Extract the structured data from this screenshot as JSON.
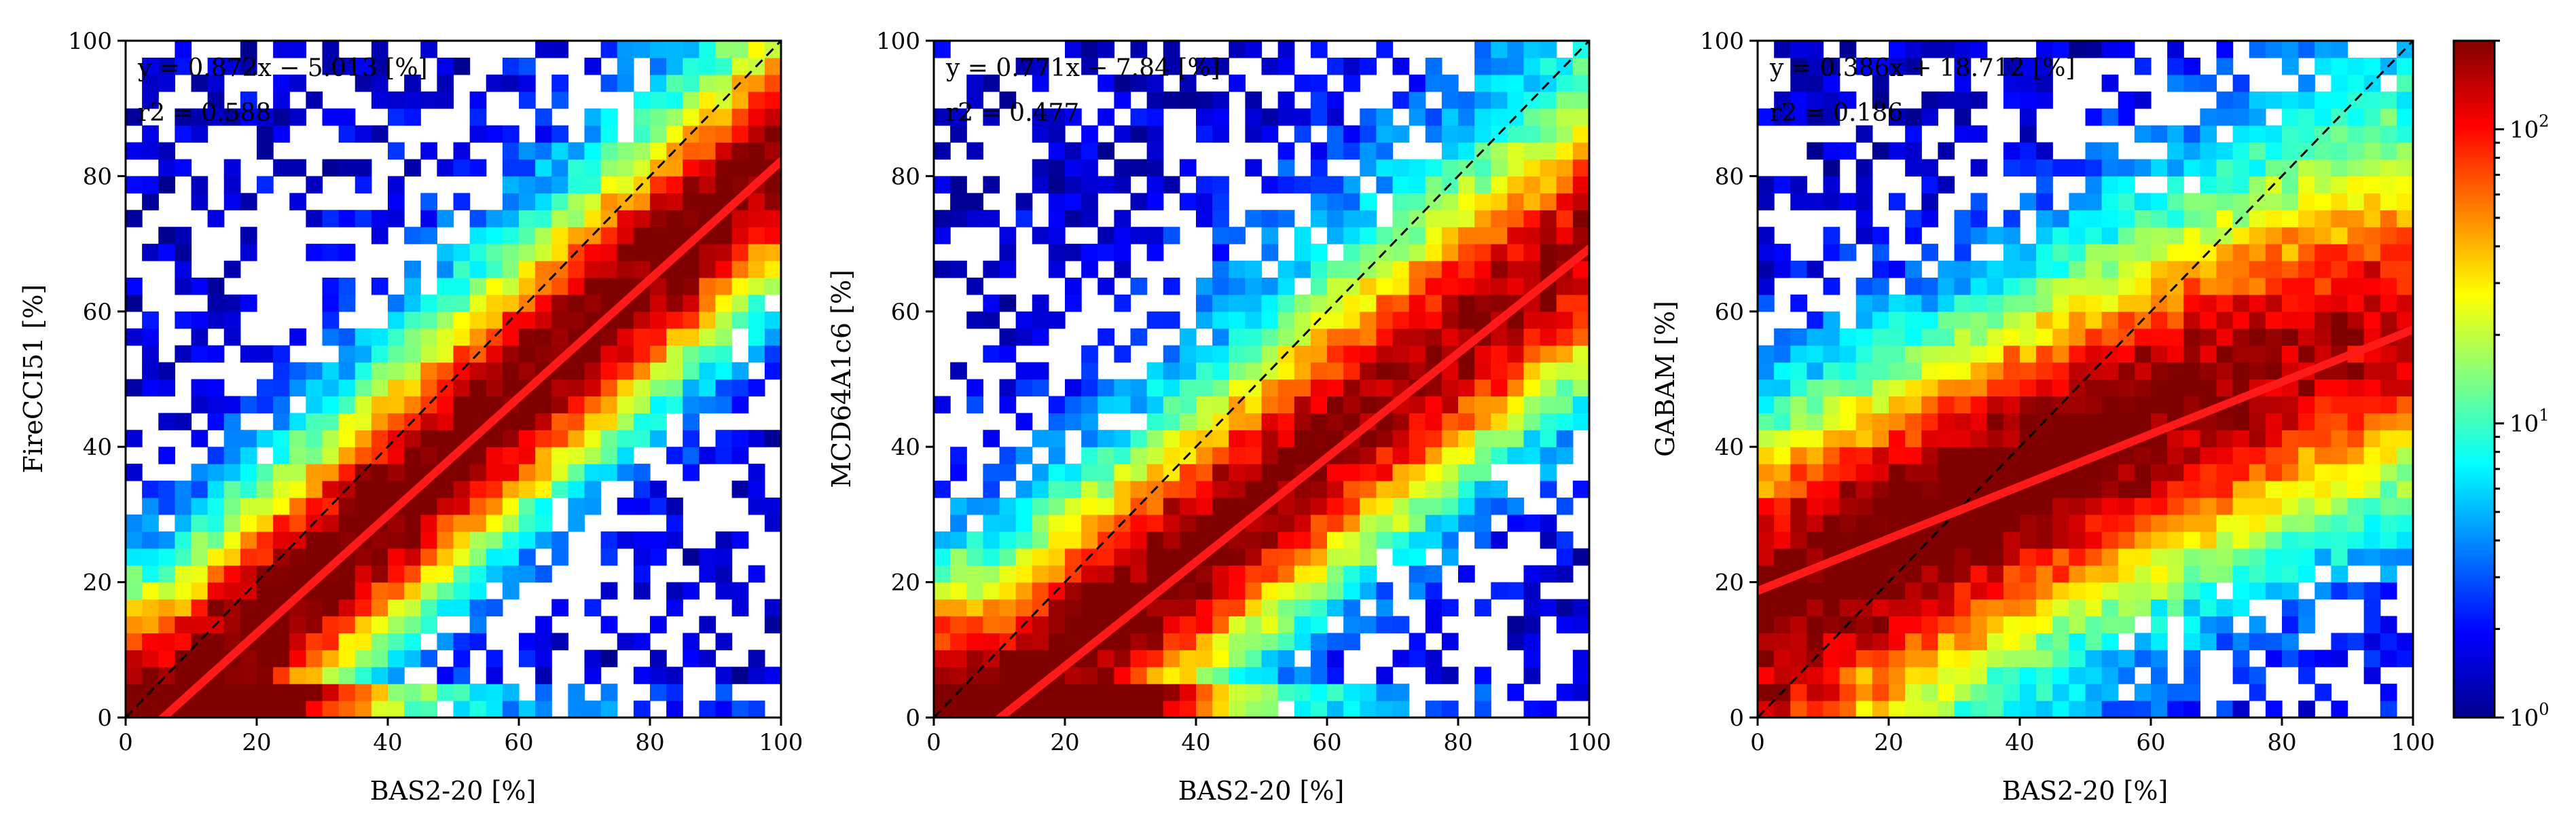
{
  "chart_data": [
    {
      "type": "heatmap",
      "xlabel": "BAS2-20 [%]",
      "ylabel": "FireCCI51 [%]",
      "xlim": [
        0,
        100
      ],
      "ylim": [
        0,
        100
      ],
      "xticks": [
        "0",
        "20",
        "40",
        "60",
        "80",
        "100"
      ],
      "yticks": [
        "0",
        "20",
        "40",
        "60",
        "80",
        "100"
      ],
      "equation": "y = 0.872x − 5.013 [%]",
      "r2_label": "r2 = 0.588",
      "fit": {
        "slope": 0.872,
        "intercept": -5.013
      },
      "one_to_one_line": true,
      "density": {
        "spread": 20,
        "low_band_strength": 1.0
      }
    },
    {
      "type": "heatmap",
      "xlabel": "BAS2-20 [%]",
      "ylabel": "MCD64A1c6 [%]",
      "xlim": [
        0,
        100
      ],
      "ylim": [
        0,
        100
      ],
      "xticks": [
        "0",
        "20",
        "40",
        "60",
        "80",
        "100"
      ],
      "yticks": [
        "0",
        "20",
        "40",
        "60",
        "80",
        "100"
      ],
      "equation": "y = 0.771x − 7.84 [%]",
      "r2_label": "r2 = 0.477",
      "fit": {
        "slope": 0.771,
        "intercept": -7.84
      },
      "one_to_one_line": true,
      "density": {
        "spread": 22,
        "low_band_strength": 1.0
      }
    },
    {
      "type": "heatmap",
      "xlabel": "BAS2-20 [%]",
      "ylabel": "GABAM [%]",
      "xlim": [
        0,
        100
      ],
      "ylim": [
        0,
        100
      ],
      "xticks": [
        "0",
        "20",
        "40",
        "60",
        "80",
        "100"
      ],
      "yticks": [
        "0",
        "20",
        "40",
        "60",
        "80",
        "100"
      ],
      "equation": "y = 0.386x + 18.712 [%]",
      "r2_label": "r2 = 0.186",
      "fit": {
        "slope": 0.386,
        "intercept": 18.712
      },
      "one_to_one_line": true,
      "density": {
        "spread": 28,
        "low_band_strength": 0.15
      }
    }
  ],
  "colorbar": {
    "scale": "log",
    "range": [
      1,
      200
    ],
    "tick_base": "10",
    "tick_exponents": [
      "0",
      "1",
      "2"
    ],
    "colormap": "jet",
    "colors": [
      "#00008f",
      "#0000ff",
      "#0080ff",
      "#00ffff",
      "#80ff80",
      "#ffff00",
      "#ff8000",
      "#ff0000",
      "#800000"
    ]
  },
  "colors": {
    "fit_line": "#ff1a1a",
    "one_to_one_line": "#000000"
  }
}
